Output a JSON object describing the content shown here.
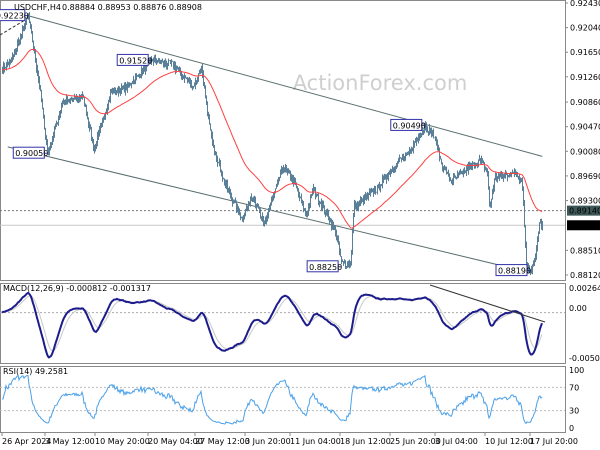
{
  "header": {
    "symbol_timeframe": "USDCHF,H4",
    "ohlc": "0.88884 0.88953 0.88876 0.88908"
  },
  "watermark": "ActionForex.com",
  "colors": {
    "bars": "#5a7f99",
    "ma": "#ff4040",
    "macd": "#1c1c8c",
    "signal": "#c8c8c8",
    "rsi": "#4aa0e8",
    "channel": "#5a6e6e",
    "label_border": "#3333aa"
  },
  "chart_data": [
    {
      "type": "ohlc",
      "title": "USDCHF,H4",
      "y_ticks": [
        "0.92430",
        "0.92040",
        "0.91650",
        "0.91260",
        "0.90860",
        "0.90470",
        "0.90080",
        "0.89690",
        "0.89300",
        "0.88510",
        "0.88120"
      ],
      "ylim": [
        0.8812,
        0.9243
      ],
      "x_ticks": [
        "26 Apr 2024",
        "3 May 12:00",
        "10 May 20:00",
        "20 May 04:00",
        "27 May 12:00",
        "3 Jun 20:00",
        "11 Jun 04:00",
        "18 Jun 12:00",
        "25 Jun 20:00",
        "3 Jul 04:00",
        "10 Jul 12:00",
        "17 Jul 20:00"
      ],
      "x_tick_times": [
        "2024-04-26T00:00",
        "2024-05-03T12:00",
        "2024-05-10T20:00",
        "2024-05-20T04:00",
        "2024-05-27T12:00",
        "2024-06-03T20:00",
        "2024-06-11T04:00",
        "2024-06-18T12:00",
        "2024-06-25T20:00",
        "2024-07-03T04:00",
        "2024-07-10T12:00",
        "2024-07-17T20:00"
      ],
      "price_path": [
        [
          "2024-04-26T00:00",
          0.914
        ],
        [
          "2024-04-27T12:00",
          0.915
        ],
        [
          "2024-04-30T12:00",
          0.9223
        ],
        [
          "2024-05-02T08:00",
          0.912
        ],
        [
          "2024-05-03T20:00",
          0.9005
        ],
        [
          "2024-05-06T00:00",
          0.9085
        ],
        [
          "2024-05-09T00:00",
          0.9095
        ],
        [
          "2024-05-10T16:00",
          0.901
        ],
        [
          "2024-05-13T12:00",
          0.91
        ],
        [
          "2024-05-16T12:00",
          0.911
        ],
        [
          "2024-05-20T16:00",
          0.9152
        ],
        [
          "2024-05-24T00:00",
          0.9145
        ],
        [
          "2024-05-27T04:00",
          0.911
        ],
        [
          "2024-05-28T08:00",
          0.914
        ],
        [
          "2024-05-29T20:00",
          0.903
        ],
        [
          "2024-05-31T16:00",
          0.896
        ],
        [
          "2024-06-03T08:00",
          0.89
        ],
        [
          "2024-06-05T00:00",
          0.894
        ],
        [
          "2024-06-06T20:00",
          0.889
        ],
        [
          "2024-06-10T00:00",
          0.8985
        ],
        [
          "2024-06-11T16:00",
          0.896
        ],
        [
          "2024-06-13T12:00",
          0.8905
        ],
        [
          "2024-06-14T12:00",
          0.895
        ],
        [
          "2024-06-17T20:00",
          0.888
        ],
        [
          "2024-06-18T16:00",
          0.883
        ],
        [
          "2024-06-20T00:00",
          0.8832
        ],
        [
          "2024-06-20T12:00",
          0.892
        ],
        [
          "2024-06-24T00:00",
          0.895
        ],
        [
          "2024-06-26T20:00",
          0.899
        ],
        [
          "2024-06-28T12:00",
          0.9
        ],
        [
          "2024-07-01T12:00",
          0.9049
        ],
        [
          "2024-07-03T00:00",
          0.903
        ],
        [
          "2024-07-04T04:00",
          0.8985
        ],
        [
          "2024-07-05T12:00",
          0.896
        ],
        [
          "2024-07-08T12:00",
          0.8985
        ],
        [
          "2024-07-09T16:00",
          0.8995
        ],
        [
          "2024-07-10T20:00",
          0.8975
        ],
        [
          "2024-07-11T04:00",
          0.8915
        ],
        [
          "2024-07-12T00:00",
          0.8965
        ],
        [
          "2024-07-15T12:00",
          0.8975
        ],
        [
          "2024-07-16T12:00",
          0.896
        ],
        [
          "2024-07-17T04:00",
          0.883
        ],
        [
          "2024-07-17T20:00",
          0.8819
        ],
        [
          "2024-07-18T16:00",
          0.884
        ],
        [
          "2024-07-19T08:00",
          0.8895
        ],
        [
          "2024-07-19T20:00",
          0.8891
        ]
      ],
      "annotations": [
        {
          "text": "0.92230",
          "time": "2024-04-30T12:00",
          "price": 0.9223
        },
        {
          "text": "0.91520",
          "time": "2024-05-20T16:00",
          "price": 0.9152
        },
        {
          "text": "0.90050",
          "time": "2024-05-03T20:00",
          "price": 0.9005
        },
        {
          "text": "0.90490",
          "time": "2024-07-01T12:00",
          "price": 0.9049
        },
        {
          "text": "0.88250",
          "time": "2024-06-18T16:00",
          "price": 0.8825
        },
        {
          "text": "0.88190",
          "time": "2024-07-17T20:00",
          "price": 0.8819
        }
      ],
      "channel_upper": [
        [
          "2024-04-30T12:00",
          0.9223
        ],
        [
          "2024-07-19T20:00",
          0.9
        ]
      ],
      "channel_lower": [
        [
          "2024-04-27T00:00",
          0.9015
        ],
        [
          "2024-07-17T20:00",
          0.8816
        ]
      ],
      "level_dashed": {
        "text": "0.89140",
        "price": 0.8914
      },
      "current_price": {
        "text": "0.88908",
        "price": 0.88908
      }
    },
    {
      "type": "line",
      "title": "MACD(12,26,9) -0.000812 -0.001317",
      "y_ticks": [
        "0.00264",
        "0.00",
        "-0.005077"
      ],
      "ylim": [
        -0.005077,
        0.00264
      ]
    },
    {
      "type": "line",
      "title": "RSI(14) 49.2581",
      "y_ticks": [
        "100",
        "70",
        "30",
        "0"
      ],
      "ylim": [
        0,
        100
      ]
    }
  ]
}
